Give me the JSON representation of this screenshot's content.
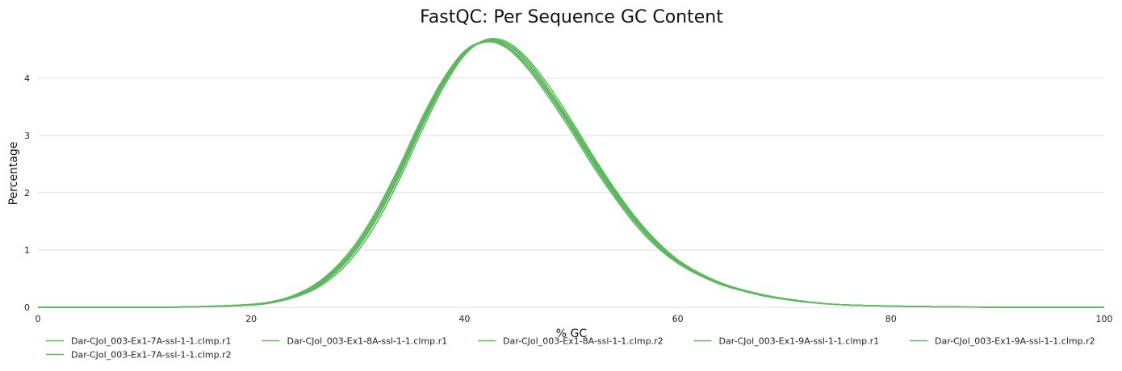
{
  "chart_data": {
    "type": "line",
    "title": "FastQC: Per Sequence GC Content",
    "xlabel": "% GC",
    "ylabel": "Percentage",
    "xlim": [
      0,
      100
    ],
    "ylim": [
      0,
      4.8
    ],
    "x_ticks": [
      0,
      20,
      40,
      60,
      80,
      100
    ],
    "y_ticks": [
      0,
      1,
      2,
      3,
      4
    ],
    "grid": true,
    "legend_position": "bottom",
    "series_color": "#5cb85c",
    "series": [
      {
        "name": "Dar-CJol_003-Ex1-7A-ssl-1-1.clmp.r1",
        "x": [
          0,
          10,
          15,
          20,
          22,
          24,
          26,
          28,
          30,
          32,
          34,
          36,
          38,
          40,
          42,
          44,
          46,
          48,
          50,
          52,
          54,
          56,
          58,
          60,
          62,
          64,
          66,
          68,
          70,
          72,
          74,
          76,
          78,
          80,
          84,
          90,
          100
        ],
        "y": [
          0,
          0,
          0.01,
          0.05,
          0.1,
          0.2,
          0.38,
          0.68,
          1.12,
          1.72,
          2.45,
          3.25,
          3.95,
          4.45,
          4.65,
          4.55,
          4.2,
          3.7,
          3.15,
          2.55,
          2.0,
          1.5,
          1.1,
          0.8,
          0.58,
          0.41,
          0.3,
          0.21,
          0.15,
          0.1,
          0.06,
          0.04,
          0.03,
          0.02,
          0.01,
          0,
          0
        ]
      },
      {
        "name": "Dar-CJol_003-Ex1-8A-ssl-1-1.clmp.r1",
        "x": [
          0,
          10,
          15,
          20,
          22,
          24,
          26,
          28,
          30,
          32,
          34,
          36,
          38,
          40,
          42,
          44,
          46,
          48,
          50,
          52,
          54,
          56,
          58,
          60,
          62,
          64,
          66,
          68,
          70,
          72,
          74,
          76,
          78,
          80,
          84,
          90,
          100
        ],
        "y": [
          0,
          0,
          0.01,
          0.05,
          0.1,
          0.21,
          0.4,
          0.71,
          1.16,
          1.77,
          2.5,
          3.3,
          3.98,
          4.47,
          4.64,
          4.52,
          4.15,
          3.64,
          3.08,
          2.48,
          1.94,
          1.45,
          1.06,
          0.77,
          0.56,
          0.4,
          0.29,
          0.2,
          0.14,
          0.09,
          0.06,
          0.04,
          0.03,
          0.02,
          0.01,
          0,
          0
        ]
      },
      {
        "name": "Dar-CJol_003-Ex1-8A-ssl-1-1.clmp.r2",
        "x": [
          0,
          10,
          15,
          20,
          22,
          24,
          26,
          28,
          30,
          32,
          34,
          36,
          38,
          40,
          42,
          44,
          46,
          48,
          50,
          52,
          54,
          56,
          58,
          60,
          62,
          64,
          66,
          68,
          70,
          72,
          74,
          76,
          78,
          80,
          84,
          90,
          100
        ],
        "y": [
          0,
          0,
          0.01,
          0.04,
          0.09,
          0.18,
          0.34,
          0.62,
          1.04,
          1.62,
          2.34,
          3.15,
          3.88,
          4.42,
          4.66,
          4.6,
          4.28,
          3.78,
          3.22,
          2.62,
          2.06,
          1.56,
          1.14,
          0.82,
          0.6,
          0.42,
          0.3,
          0.21,
          0.15,
          0.1,
          0.06,
          0.04,
          0.03,
          0.02,
          0.01,
          0,
          0
        ]
      },
      {
        "name": "Dar-CJol_003-Ex1-9A-ssl-1-1.clmp.r1",
        "x": [
          0,
          10,
          15,
          20,
          22,
          24,
          26,
          28,
          30,
          32,
          34,
          36,
          38,
          40,
          42,
          44,
          46,
          48,
          50,
          52,
          54,
          56,
          58,
          60,
          62,
          64,
          66,
          68,
          70,
          72,
          74,
          76,
          78,
          80,
          84,
          90,
          100
        ],
        "y": [
          0,
          0,
          0.01,
          0.05,
          0.1,
          0.2,
          0.37,
          0.66,
          1.1,
          1.7,
          2.42,
          3.22,
          3.92,
          4.44,
          4.63,
          4.54,
          4.19,
          3.69,
          3.13,
          2.53,
          1.98,
          1.49,
          1.09,
          0.79,
          0.57,
          0.41,
          0.3,
          0.21,
          0.15,
          0.1,
          0.06,
          0.04,
          0.03,
          0.02,
          0.01,
          0,
          0
        ]
      },
      {
        "name": "Dar-CJol_003-Ex1-9A-ssl-1-1.clmp.r2",
        "x": [
          0,
          10,
          15,
          20,
          22,
          24,
          26,
          28,
          30,
          32,
          34,
          36,
          38,
          40,
          42,
          44,
          46,
          48,
          50,
          52,
          54,
          56,
          58,
          60,
          62,
          64,
          66,
          68,
          70,
          72,
          74,
          76,
          78,
          80,
          84,
          90,
          100
        ],
        "y": [
          0,
          0,
          0.01,
          0.04,
          0.08,
          0.17,
          0.32,
          0.58,
          0.98,
          1.55,
          2.27,
          3.08,
          3.83,
          4.4,
          4.67,
          4.63,
          4.32,
          3.84,
          3.27,
          2.66,
          2.09,
          1.58,
          1.16,
          0.83,
          0.6,
          0.43,
          0.31,
          0.22,
          0.15,
          0.1,
          0.06,
          0.04,
          0.03,
          0.02,
          0.01,
          0,
          0
        ]
      },
      {
        "name": "Dar-CJol_003-Ex1-7A-ssl-1-1.clmp.r2",
        "x": [
          0,
          10,
          15,
          20,
          22,
          24,
          26,
          28,
          30,
          32,
          34,
          36,
          38,
          40,
          42,
          44,
          46,
          48,
          50,
          52,
          54,
          56,
          58,
          60,
          62,
          64,
          66,
          68,
          70,
          72,
          74,
          76,
          78,
          80,
          84,
          90,
          100
        ],
        "y": [
          0,
          0,
          0.01,
          0.04,
          0.09,
          0.19,
          0.35,
          0.63,
          1.06,
          1.65,
          2.37,
          3.18,
          3.9,
          4.43,
          4.65,
          4.58,
          4.24,
          3.74,
          3.18,
          2.58,
          2.03,
          1.53,
          1.12,
          0.81,
          0.59,
          0.42,
          0.3,
          0.21,
          0.15,
          0.1,
          0.06,
          0.04,
          0.03,
          0.02,
          0.01,
          0,
          0
        ]
      }
    ]
  }
}
